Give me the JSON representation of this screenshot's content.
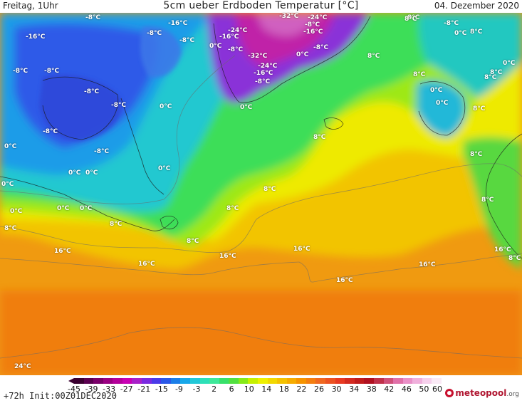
{
  "header": {
    "left": "Freitag, 1Uhr",
    "title": "5cm ueber Erdboden Temperatur [°C]",
    "right": "04. Dezember 2020"
  },
  "footer": {
    "run_info": "+72h  Init:00Z01DEC2020",
    "brand": "meteopool",
    "brand_suffix": ".org"
  },
  "legend": {
    "ticks": [
      "-45",
      "-39",
      "-33",
      "-27",
      "-21",
      "-15",
      "-9",
      "-3",
      "2",
      "6",
      "10",
      "14",
      "18",
      "22",
      "26",
      "30",
      "34",
      "38",
      "42",
      "46",
      "50",
      "60"
    ],
    "colors": [
      "#3a0030",
      "#5a0050",
      "#7a006a",
      "#9a0082",
      "#b4009a",
      "#c800b4",
      "#a820c8",
      "#7a2ae0",
      "#4a3ae8",
      "#2a58e8",
      "#1a7ee8",
      "#18a8ea",
      "#22c8d8",
      "#2ee0b8",
      "#3ee89a",
      "#38e06a",
      "#52e040",
      "#86ea18",
      "#c6f000",
      "#eef000",
      "#f2d800",
      "#f4c200",
      "#f6ac00",
      "#f69400",
      "#f47e10",
      "#f06820",
      "#ec5222",
      "#e83a22",
      "#d42a20",
      "#c01c1c",
      "#b01020",
      "#c0304a",
      "#d0507a",
      "#e070a8",
      "#ea90c8",
      "#f0b0dc",
      "#f6d0ec",
      "#faeaf6"
    ]
  },
  "map_labels": [
    {
      "t": "-8°C"
    },
    {
      "t": "-16°C"
    },
    {
      "t": "-8°C"
    },
    {
      "t": "-16°C"
    },
    {
      "t": "-8°C"
    },
    {
      "t": "-32°C"
    },
    {
      "t": "-24°C"
    },
    {
      "t": "-8°C"
    },
    {
      "t": "-16°C"
    },
    {
      "t": "-24°C"
    },
    {
      "t": "-16°C"
    },
    {
      "t": "0°C"
    },
    {
      "t": "-8°C"
    },
    {
      "t": "-32°C"
    },
    {
      "t": "-24°C"
    },
    {
      "t": "-16°C"
    },
    {
      "t": "-8°C"
    },
    {
      "t": "0°C"
    },
    {
      "t": "-8°C"
    },
    {
      "t": "0°C"
    },
    {
      "t": "8°C"
    },
    {
      "t": "8°C"
    },
    {
      "t": "-8°C"
    },
    {
      "t": "0°C"
    },
    {
      "t": "8°C"
    },
    {
      "t": "0°C"
    },
    {
      "t": "-8°C"
    },
    {
      "t": "-8°C"
    },
    {
      "t": "-8°C"
    },
    {
      "t": "-8°C"
    },
    {
      "t": "-8°C"
    },
    {
      "t": "0°C"
    },
    {
      "t": "8°C"
    },
    {
      "t": "0°C"
    },
    {
      "t": "8°C"
    },
    {
      "t": "0°C"
    },
    {
      "t": "0°C"
    },
    {
      "t": "8°C"
    },
    {
      "t": "8°C"
    },
    {
      "t": "-8°C"
    },
    {
      "t": "0°C"
    },
    {
      "t": "0°C"
    },
    {
      "t": "0°C"
    },
    {
      "t": "0°C"
    },
    {
      "t": "0°C"
    },
    {
      "t": "8°C"
    },
    {
      "t": "8°C"
    },
    {
      "t": "0°C"
    },
    {
      "t": "0°C"
    },
    {
      "t": "8°C"
    },
    {
      "t": "8°C"
    },
    {
      "t": "8°C"
    },
    {
      "t": "8°C"
    },
    {
      "t": "8°C"
    },
    {
      "t": "8°C"
    },
    {
      "t": "16°C"
    },
    {
      "t": "16°C"
    },
    {
      "t": "16°C"
    },
    {
      "t": "16°C"
    },
    {
      "t": "16°C"
    },
    {
      "t": "16°C"
    },
    {
      "t": "16°C"
    },
    {
      "t": "8°C"
    },
    {
      "t": "24°C"
    },
    {
      "t": "8°C"
    }
  ]
}
